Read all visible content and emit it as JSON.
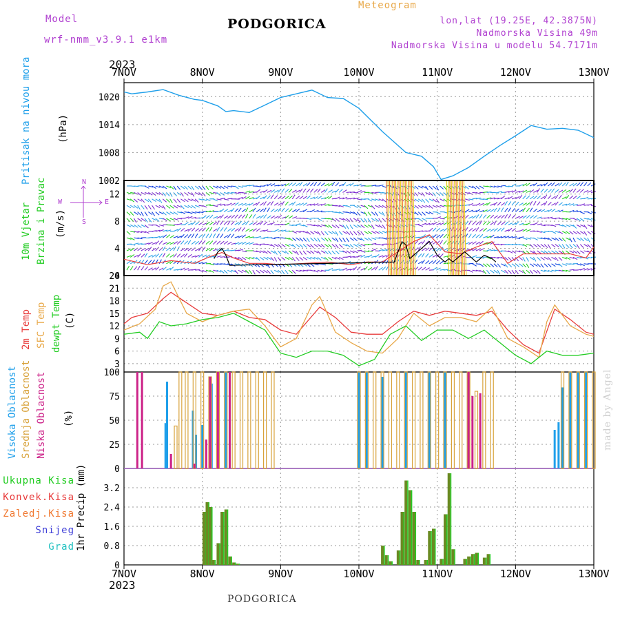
{
  "header": {
    "model_label": "Model",
    "model_name": "wrf-nmm_v3.9.1 e1km",
    "title": "PODGORICA",
    "meteogram": "Meteogram",
    "lonlat": "lon,lat (19.25E, 42.3875N)",
    "elevation": "Nadmorska Visina 49m",
    "model_elevation": "Nadmorska Visina u modelu 54.7171m"
  },
  "footer": {
    "station": "PODGORICA",
    "credit": "made by Angel"
  },
  "time_axis": {
    "year": "2023",
    "labels": [
      "7NOV",
      "8NOV",
      "9NOV",
      "10NOV",
      "11NOV",
      "12NOV",
      "13NOV"
    ]
  },
  "colors": {
    "pressure": "#1e9fea",
    "wind_label": "#22cc22",
    "temp2m": "#e83c3c",
    "sfc": "#e8a848",
    "dew": "#22cc22",
    "high_cloud": "#1e9fea",
    "mid_cloud": "#d8a23a",
    "low_cloud": "#cc2288",
    "total_rain": "#22cc22",
    "conv_rain": "#e83c3c",
    "frz_rain": "#f07830",
    "snow": "#4040d8",
    "hail": "#20c0c0",
    "precip_bar": "#6a8a22"
  },
  "panel_labels": {
    "pressure": "Pritisak na nivou mora",
    "pressure_unit": "(hPa)",
    "wind1": "10m Vjetar",
    "wind2": "Brzina i Pravac",
    "wind_unit": "(m/s)",
    "compass_n": "N",
    "compass_s": "S",
    "compass_w": "W",
    "compass_e": "E",
    "temp1": "2m Temp",
    "temp2": "SFC Temp",
    "temp3": "dewpt Temp",
    "temp_unit": "(C)",
    "cloud1": "Visoka Oblacnost",
    "cloud2": "Srednja Oblacnost",
    "cloud3": "Niska Oblacnost",
    "cloud_unit": "(%)",
    "precip_unit": "1hr Precip (mm)",
    "legend": [
      "Ukupna Kisa",
      "Konvek.Kisa",
      "Zaledj.Kisa",
      "Snijeg",
      "Grad"
    ]
  },
  "chart_data": [
    {
      "type": "line",
      "panel": "pressure",
      "ylim": [
        1002,
        1023
      ],
      "ticks": [
        1002,
        1008,
        1014,
        1020
      ],
      "x": [
        0,
        0.1,
        0.3,
        0.5,
        0.7,
        0.9,
        1.0,
        1.2,
        1.3,
        1.4,
        1.6,
        1.8,
        2.0,
        2.2,
        2.4,
        2.6,
        2.8,
        3.0,
        3.3,
        3.6,
        3.8,
        3.95,
        4.05,
        4.2,
        4.4,
        4.6,
        4.8,
        5.0,
        5.2,
        5.4,
        5.6,
        5.8,
        6.0
      ],
      "values": [
        1021.0,
        1020.6,
        1021.0,
        1021.5,
        1020.3,
        1019.4,
        1019.2,
        1018.0,
        1016.8,
        1017.0,
        1016.6,
        1018.2,
        1019.8,
        1020.6,
        1021.4,
        1019.8,
        1019.6,
        1017.5,
        1012.5,
        1008.0,
        1007.2,
        1005.0,
        1002.2,
        1003.0,
        1004.8,
        1007.2,
        1009.5,
        1011.6,
        1013.8,
        1013.0,
        1013.2,
        1012.8,
        1011.2
      ]
    },
    {
      "type": "line",
      "panel": "wind",
      "ylim": [
        0,
        14
      ],
      "ticks": [
        0,
        4,
        8,
        12
      ],
      "series": [
        {
          "color": "#e83c3c",
          "x": [
            0,
            0.3,
            0.6,
            0.9,
            1.1,
            1.25,
            1.4,
            1.6,
            1.8,
            2.0,
            2.3,
            2.6,
            2.9,
            3.1,
            3.3,
            3.5,
            3.7,
            3.9,
            4.1,
            4.3,
            4.5,
            4.7,
            4.9,
            5.1,
            5.3,
            5.5,
            5.7,
            5.9,
            6.0
          ],
          "values": [
            2.4,
            1.6,
            2.2,
            1.8,
            2.8,
            3.4,
            2.6,
            1.8,
            1.8,
            1.6,
            1.8,
            2.0,
            1.6,
            2.0,
            2.0,
            3.5,
            5.0,
            6.0,
            3.5,
            3.2,
            4.2,
            5.0,
            1.8,
            3.2,
            3.2,
            3.2,
            3.2,
            2.6,
            4.2
          ]
        },
        {
          "color": "#000000",
          "x": [
            1.15,
            1.2,
            1.25,
            1.3,
            1.35,
            3.45,
            3.5,
            3.55,
            3.6,
            3.65,
            3.8,
            3.9,
            4.0,
            4.1,
            4.15,
            4.2,
            4.3,
            4.35,
            4.5,
            4.6,
            4.7,
            4.75
          ],
          "values": [
            2.5,
            3.5,
            4.0,
            3.0,
            1.5,
            2.0,
            3.5,
            5.0,
            4.5,
            2.5,
            4.0,
            5.0,
            3.0,
            2.0,
            2.5,
            2.0,
            3.0,
            3.5,
            2.0,
            3.0,
            2.5,
            2.0
          ]
        }
      ]
    },
    {
      "type": "line",
      "panel": "temperature",
      "ylim": [
        1,
        24
      ],
      "ticks": [
        3,
        6,
        9,
        12,
        15,
        18,
        21,
        24
      ],
      "series": [
        {
          "name": "2m Temp",
          "color": "#e83c3c",
          "x": [
            0,
            0.1,
            0.3,
            0.5,
            0.6,
            0.8,
            1.0,
            1.2,
            1.4,
            1.6,
            1.8,
            2.0,
            2.2,
            2.5,
            2.7,
            2.9,
            3.1,
            3.3,
            3.5,
            3.7,
            3.9,
            4.1,
            4.3,
            4.5,
            4.7,
            4.9,
            5.1,
            5.3,
            5.5,
            5.7,
            5.9,
            6.0
          ],
          "values": [
            12.5,
            14.0,
            15.0,
            18.5,
            20.0,
            17.5,
            15.0,
            14.5,
            15.5,
            14.0,
            13.5,
            11.0,
            10.0,
            16.5,
            14.0,
            10.5,
            10.0,
            10.0,
            13.0,
            15.5,
            14.5,
            15.5,
            15.0,
            14.5,
            15.5,
            11.0,
            7.5,
            5.5,
            16.0,
            13.5,
            10.5,
            10.0
          ]
        },
        {
          "name": "SFC Temp",
          "color": "#e8a848",
          "x": [
            0,
            0.2,
            0.4,
            0.5,
            0.6,
            0.8,
            1.0,
            1.2,
            1.4,
            1.6,
            1.8,
            2.0,
            2.2,
            2.4,
            2.5,
            2.7,
            2.9,
            3.1,
            3.3,
            3.5,
            3.7,
            3.9,
            4.1,
            4.3,
            4.5,
            4.7,
            4.9,
            5.1,
            5.3,
            5.4,
            5.5,
            5.7,
            5.9,
            6.0
          ],
          "values": [
            11.0,
            12.5,
            16.0,
            21.5,
            22.5,
            15.0,
            13.0,
            14.5,
            15.5,
            16.0,
            12.0,
            7.0,
            9.0,
            17.0,
            19.0,
            10.5,
            8.0,
            6.0,
            5.5,
            9.0,
            15.0,
            12.0,
            14.0,
            14.0,
            13.0,
            16.5,
            9.0,
            7.0,
            4.5,
            13.0,
            17.0,
            12.0,
            10.0,
            9.5
          ]
        },
        {
          "name": "dewpt Temp",
          "color": "#22cc22",
          "x": [
            0,
            0.2,
            0.3,
            0.45,
            0.6,
            0.8,
            1.0,
            1.2,
            1.4,
            1.6,
            1.8,
            2.0,
            2.2,
            2.4,
            2.6,
            2.8,
            3.0,
            3.2,
            3.4,
            3.6,
            3.8,
            4.0,
            4.2,
            4.4,
            4.6,
            4.8,
            5.0,
            5.2,
            5.4,
            5.6,
            5.8,
            6.0
          ],
          "values": [
            10.0,
            10.5,
            9.0,
            13.0,
            12.0,
            12.5,
            13.5,
            14.0,
            15.0,
            13.0,
            11.0,
            5.5,
            4.5,
            6.0,
            6.0,
            5.0,
            2.5,
            4.0,
            10.0,
            12.0,
            8.5,
            11.0,
            11.0,
            9.0,
            11.0,
            8.0,
            5.0,
            3.0,
            6.0,
            5.0,
            5.0,
            5.5
          ]
        }
      ]
    },
    {
      "type": "bar",
      "panel": "cloud",
      "ylim": [
        0,
        100
      ],
      "ticks": [
        0,
        25,
        50,
        75,
        100
      ],
      "series": [
        {
          "name": "Visoka Oblacnost",
          "color": "#1e9fea",
          "x": [
            0.53,
            0.55,
            0.88,
            0.92,
            1.0,
            1.12,
            1.3,
            3.0,
            3.1,
            3.3,
            3.6,
            3.9,
            4.1,
            4.4,
            5.5,
            5.55,
            5.6,
            5.7,
            5.8,
            5.9
          ],
          "values": [
            47,
            90,
            60,
            35,
            45,
            88,
            100,
            100,
            100,
            95,
            100,
            100,
            100,
            100,
            40,
            48,
            84,
            100,
            100,
            100
          ]
        },
        {
          "name": "Srednja Oblacnost",
          "color": "#d8a23a",
          "x": [
            0.66,
            0.72,
            0.8,
            0.9,
            1.0,
            1.1,
            1.2,
            1.3,
            1.4,
            1.5,
            1.6,
            1.7,
            1.8,
            1.9,
            3.0,
            3.1,
            3.2,
            3.3,
            3.4,
            3.5,
            3.6,
            3.7,
            3.8,
            3.9,
            4.0,
            4.1,
            4.2,
            4.3,
            4.4,
            4.5,
            4.6,
            4.7,
            5.6,
            5.7,
            5.8,
            5.9,
            6.0
          ],
          "values": [
            44,
            100,
            100,
            100,
            100,
            95,
            100,
            100,
            100,
            100,
            100,
            100,
            100,
            100,
            100,
            100,
            100,
            100,
            100,
            100,
            100,
            100,
            100,
            100,
            100,
            100,
            100,
            100,
            100,
            80,
            100,
            100,
            100,
            100,
            100,
            100,
            100
          ]
        },
        {
          "name": "Niska Oblacnost",
          "color": "#cc2288",
          "x": [
            0.17,
            0.23,
            0.6,
            0.9,
            1.05,
            1.1,
            1.2,
            1.35,
            4.4,
            4.45,
            4.55
          ],
          "values": [
            100,
            100,
            15,
            5,
            30,
            95,
            100,
            100,
            100,
            75,
            78
          ]
        }
      ]
    },
    {
      "type": "bar",
      "panel": "precip",
      "ylim": [
        0,
        4
      ],
      "ticks": [
        0,
        0.8,
        1.6,
        2.4,
        3.2
      ],
      "x": [
        1.02,
        1.06,
        1.1,
        1.14,
        1.2,
        1.25,
        1.3,
        1.35,
        1.4,
        1.45,
        3.3,
        3.35,
        3.4,
        3.5,
        3.55,
        3.6,
        3.65,
        3.7,
        3.75,
        3.85,
        3.9,
        3.95,
        4.05,
        4.1,
        4.15,
        4.2,
        4.35,
        4.4,
        4.45,
        4.5,
        4.6,
        4.65
      ],
      "values": [
        2.2,
        2.6,
        2.4,
        0.2,
        0.9,
        2.2,
        2.3,
        0.35,
        0.1,
        0.05,
        0.8,
        0.4,
        0.15,
        0.6,
        2.2,
        3.5,
        3.1,
        2.2,
        0.2,
        0.2,
        1.4,
        1.5,
        0.25,
        2.1,
        3.8,
        0.65,
        0.25,
        0.35,
        0.45,
        0.5,
        0.3,
        0.45
      ]
    }
  ]
}
